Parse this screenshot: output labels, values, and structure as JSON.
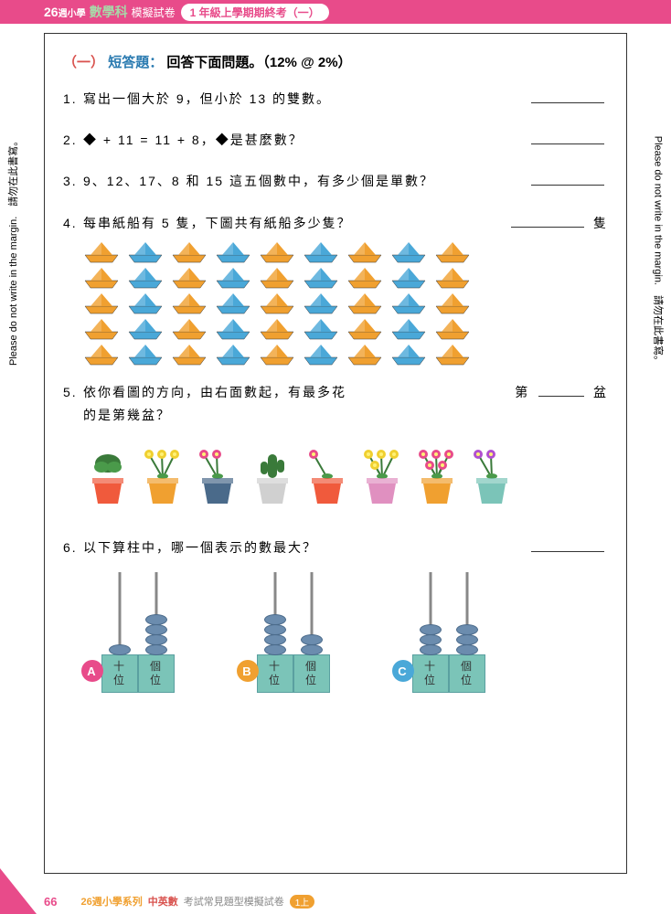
{
  "header": {
    "logo_prefix": "26",
    "logo_suffix": "週小學",
    "subject": "數學科",
    "label": "模擬試卷",
    "pill": "1 年級上學期期終考（一）"
  },
  "section_title": {
    "part1": "（一）",
    "part2": "短答題：",
    "part3": "回答下面問題。（12% @ 2%）"
  },
  "questions": {
    "q1": {
      "num": "1.",
      "text": "寫出一個大於 9，但小於 13 的雙數。"
    },
    "q2": {
      "num": "2.",
      "text": "◆ + 11 = 11 + 8，◆是甚麼數？"
    },
    "q3": {
      "num": "3.",
      "text": "9、12、17、8 和 15 這五個數中，有多少個是單數？"
    },
    "q4": {
      "num": "4.",
      "text": "每串紙船有 5 隻，下圖共有紙船多少隻？",
      "unit": "隻"
    },
    "q5": {
      "num": "5.",
      "text": "依你看圖的方向，由右面數起，有最多花的是第幾盆？",
      "prefix": "第",
      "unit": "盆"
    },
    "q6": {
      "num": "6.",
      "text": "以下算柱中，哪一個表示的數最大？"
    }
  },
  "boats": {
    "cols": 9,
    "rows": 5,
    "colors": [
      "#f0a030",
      "#4aa8d8",
      "#f0a030",
      "#4aa8d8",
      "#f0a030",
      "#4aa8d8",
      "#f0a030",
      "#4aa8d8",
      "#f0a030"
    ]
  },
  "pots": [
    {
      "pot_color": "#f05a3c",
      "plant": "leafy",
      "flower_count": 0
    },
    {
      "pot_color": "#f0a030",
      "plant": "flower",
      "flower_count": 3,
      "flower_color": "#f0d030"
    },
    {
      "pot_color": "#4a6a8a",
      "plant": "flower",
      "flower_count": 2,
      "flower_color": "#e84b8a"
    },
    {
      "pot_color": "#d0d0d0",
      "plant": "cactus",
      "flower_count": 0
    },
    {
      "pot_color": "#f05a3c",
      "plant": "flower",
      "flower_count": 1,
      "flower_color": "#e84b8a"
    },
    {
      "pot_color": "#e090c0",
      "plant": "flower",
      "flower_count": 4,
      "flower_color": "#f0d030"
    },
    {
      "pot_color": "#f0a030",
      "plant": "flower",
      "flower_count": 5,
      "flower_color": "#e84b8a"
    },
    {
      "pot_color": "#7bc4b8",
      "plant": "flower",
      "flower_count": 2,
      "flower_color": "#b050d0"
    }
  ],
  "abacus": {
    "col_labels": [
      "十位",
      "個位"
    ],
    "items": [
      {
        "id": "A",
        "label_class": "lab-a",
        "tens": 1,
        "ones": 4
      },
      {
        "id": "B",
        "label_class": "lab-b",
        "tens": 4,
        "ones": 2
      },
      {
        "id": "C",
        "label_class": "lab-c",
        "tens": 3,
        "ones": 3
      }
    ]
  },
  "margin_text": "Please do not write in the margin.　請勿在此書寫。",
  "footer": {
    "page": "66",
    "series": "26週小學系列",
    "subj": "中英數",
    "desc": "考試常見題型模擬試卷",
    "pill": "1上"
  }
}
